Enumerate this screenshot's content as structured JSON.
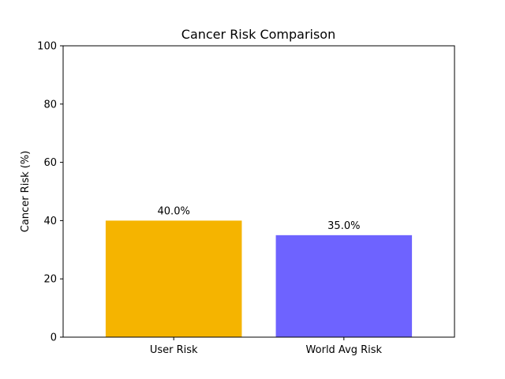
{
  "chart_data": {
    "type": "bar",
    "title": "Cancer Risk Comparison",
    "xlabel": "",
    "ylabel": "Cancer Risk (%)",
    "ylim": [
      0,
      100
    ],
    "yticks": [
      0,
      20,
      40,
      60,
      80,
      100
    ],
    "categories": [
      "User Risk",
      "World Avg Risk"
    ],
    "values": [
      40.0,
      35.0
    ],
    "value_labels": [
      "40.0%",
      "35.0%"
    ],
    "colors": [
      "#f5b400",
      "#6e63ff"
    ],
    "grid": false,
    "legend": "none"
  }
}
